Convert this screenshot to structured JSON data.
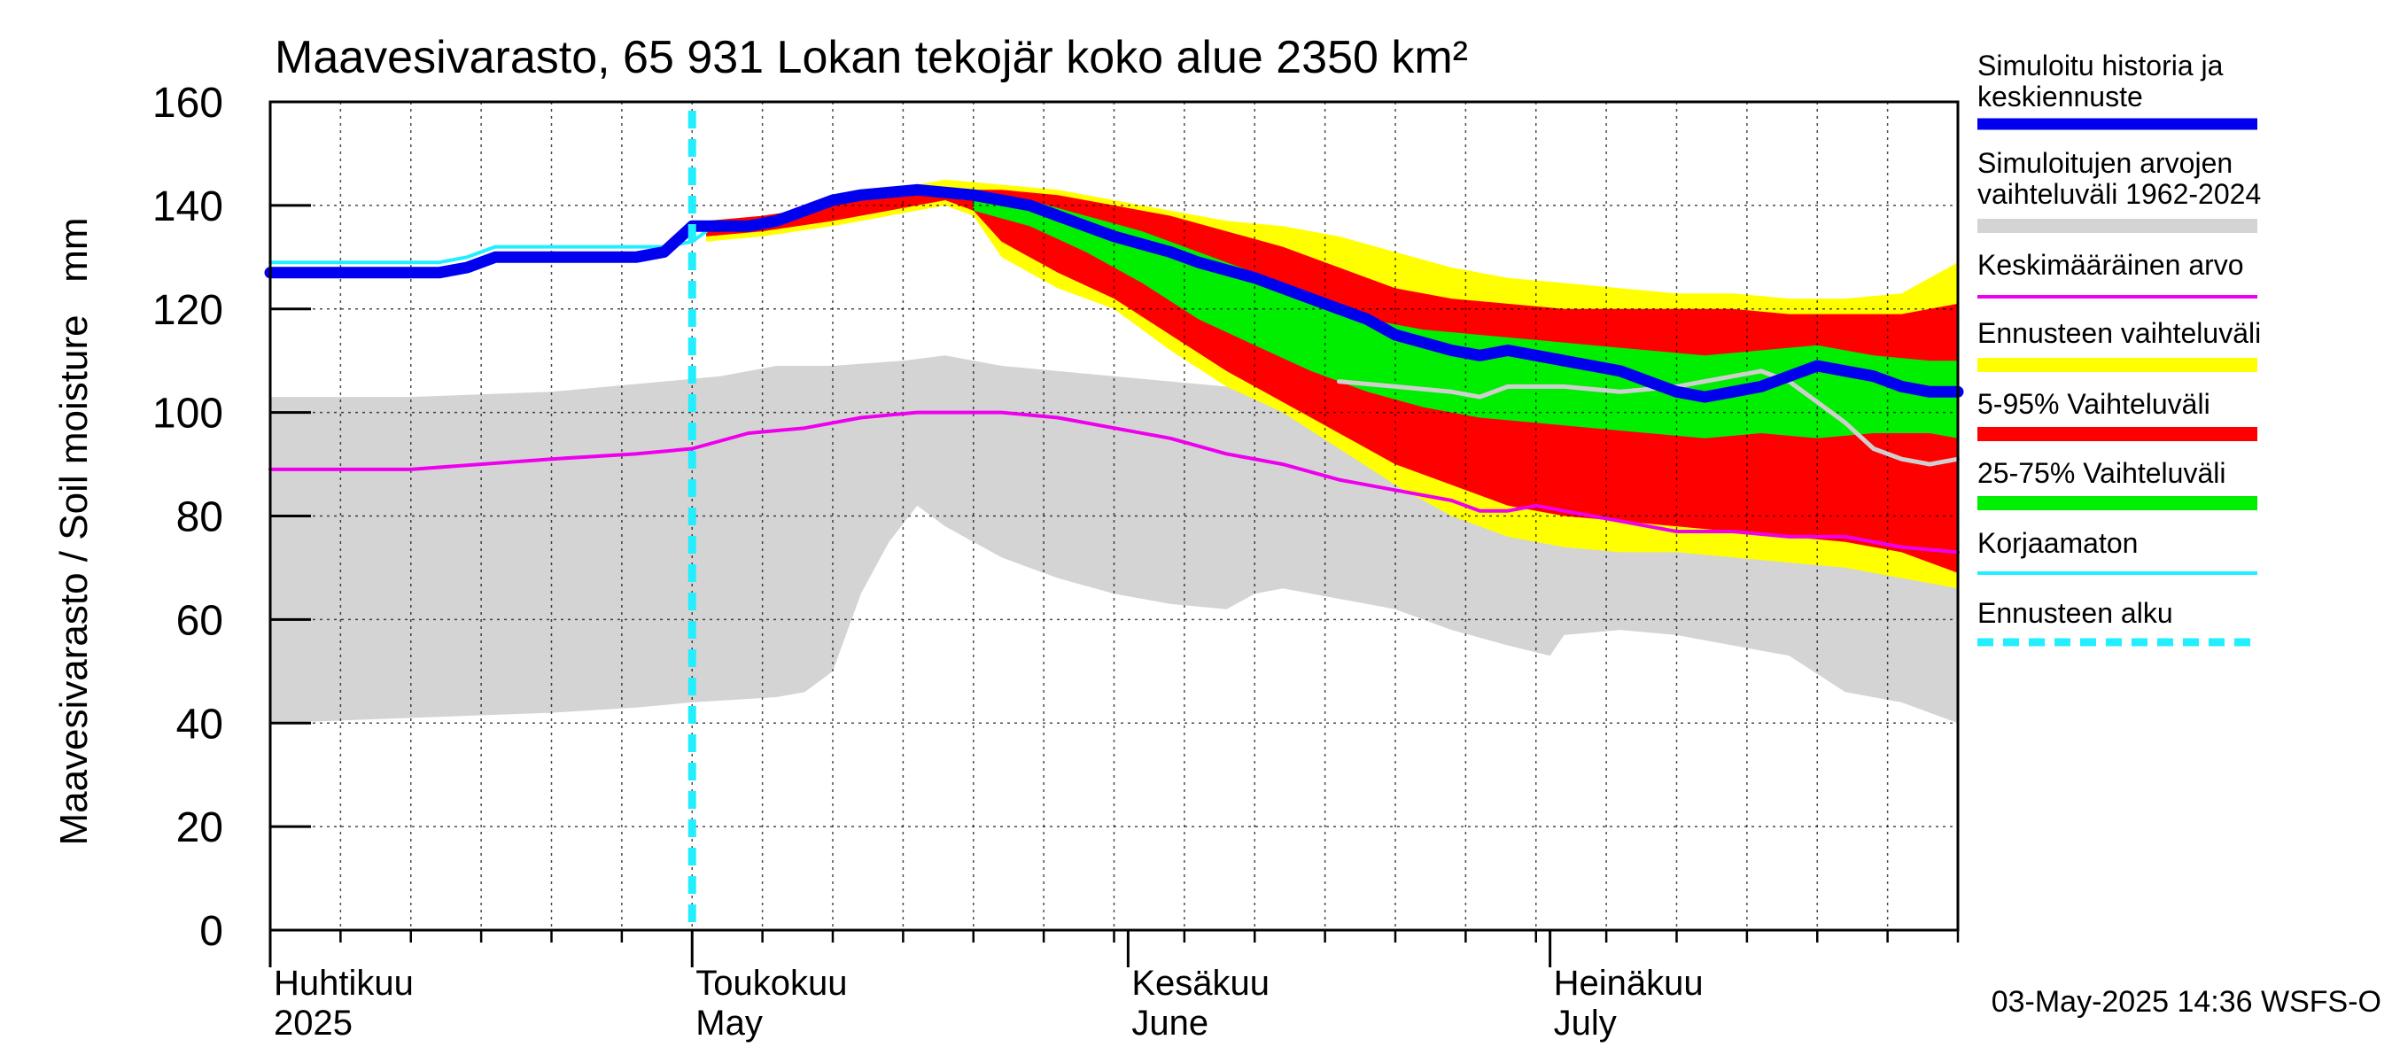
{
  "chart_data": {
    "type": "area",
    "title": "Maavesivarasto, 65 931 Lokan tekojär koko alue 2350 km²",
    "ylabel": "Maavesivarasto / Soil moisture   mm",
    "ylim": [
      0,
      160
    ],
    "yticks": [
      0,
      20,
      40,
      60,
      80,
      100,
      120,
      140,
      160
    ],
    "x_range_days": [
      0,
      120
    ],
    "x_start_date": "2025-04-01",
    "month_labels": [
      {
        "day": 0,
        "fi": "Huhtikuu",
        "en": "2025"
      },
      {
        "day": 30,
        "fi": "Toukokuu",
        "en": "May"
      },
      {
        "day": 61,
        "fi": "Kesäkuu",
        "en": "June"
      },
      {
        "day": 91,
        "fi": "Heinäkuu",
        "en": "July"
      }
    ],
    "forecast_start_day": 30,
    "timestamp": "03-May-2025 14:36 WSFS-O",
    "colors": {
      "hist_range": "#d4d4d4",
      "forecast_range": "#ffff00",
      "p5_95": "#ff0000",
      "p25_75": "#00ee00",
      "median": "#0000ee",
      "mean": "#ee00ee",
      "uncorrected": "#22eeff",
      "sim_history_grey": "#cfcfcf"
    },
    "legend": [
      {
        "label": "Simuloitu historia ja",
        "label2": "keskiennuste",
        "key": "median",
        "style": "thick"
      },
      {
        "label": "Simuloitujen arvojen",
        "label2": "vaihteluväli 1962-2024",
        "key": "hist_range",
        "style": "band"
      },
      {
        "label": "Keskimääräinen arvo",
        "key": "mean",
        "style": "thin"
      },
      {
        "label": "Ennusteen vaihteluväli",
        "key": "forecast_range",
        "style": "band"
      },
      {
        "label": "5-95% Vaihteluväli",
        "key": "p5_95",
        "style": "band"
      },
      {
        "label": "25-75% Vaihteluväli",
        "key": "p25_75",
        "style": "band"
      },
      {
        "label": "Korjaamaton",
        "key": "uncorrected",
        "style": "thin"
      },
      {
        "label": "Ennusteen alku",
        "key": "uncorrected",
        "style": "dashed"
      }
    ],
    "series": {
      "hist_max": [
        [
          0,
          103
        ],
        [
          10,
          103
        ],
        [
          20,
          104
        ],
        [
          28,
          106
        ],
        [
          32,
          107
        ],
        [
          36,
          109
        ],
        [
          40,
          109
        ],
        [
          45,
          110
        ],
        [
          48,
          111
        ],
        [
          52,
          109
        ],
        [
          56,
          108
        ],
        [
          60,
          107
        ],
        [
          64,
          106
        ],
        [
          68,
          105
        ],
        [
          72,
          104
        ],
        [
          76,
          104
        ],
        [
          80,
          104
        ],
        [
          84,
          104
        ],
        [
          88,
          103
        ],
        [
          92,
          102
        ],
        [
          96,
          101
        ],
        [
          100,
          101
        ],
        [
          104,
          100
        ],
        [
          108,
          98
        ],
        [
          112,
          95
        ],
        [
          116,
          92
        ],
        [
          120,
          90
        ]
      ],
      "hist_min": [
        [
          0,
          40
        ],
        [
          10,
          41
        ],
        [
          20,
          42
        ],
        [
          26,
          43
        ],
        [
          30,
          44
        ],
        [
          36,
          45
        ],
        [
          38,
          46
        ],
        [
          40,
          50
        ],
        [
          42,
          65
        ],
        [
          44,
          75
        ],
        [
          46,
          82
        ],
        [
          48,
          78
        ],
        [
          52,
          72
        ],
        [
          56,
          68
        ],
        [
          60,
          65
        ],
        [
          64,
          63
        ],
        [
          68,
          62
        ],
        [
          70,
          65
        ],
        [
          72,
          66
        ],
        [
          76,
          64
        ],
        [
          80,
          62
        ],
        [
          84,
          58
        ],
        [
          88,
          55
        ],
        [
          91,
          53
        ],
        [
          92,
          57
        ],
        [
          96,
          58
        ],
        [
          100,
          57
        ],
        [
          104,
          55
        ],
        [
          108,
          53
        ],
        [
          112,
          46
        ],
        [
          116,
          44
        ],
        [
          120,
          40
        ]
      ],
      "fc_max": [
        [
          31,
          137
        ],
        [
          35,
          138
        ],
        [
          40,
          140
        ],
        [
          44,
          143
        ],
        [
          48,
          145
        ],
        [
          52,
          144
        ],
        [
          56,
          143
        ],
        [
          60,
          141
        ],
        [
          64,
          139
        ],
        [
          68,
          137
        ],
        [
          72,
          136
        ],
        [
          76,
          134
        ],
        [
          80,
          131
        ],
        [
          84,
          128
        ],
        [
          88,
          126
        ],
        [
          92,
          125
        ],
        [
          96,
          124
        ],
        [
          100,
          123
        ],
        [
          104,
          123
        ],
        [
          108,
          122
        ],
        [
          112,
          122
        ],
        [
          116,
          123
        ],
        [
          120,
          129
        ]
      ],
      "fc_min": [
        [
          31,
          133
        ],
        [
          35,
          134
        ],
        [
          40,
          136
        ],
        [
          44,
          138
        ],
        [
          48,
          140
        ],
        [
          50,
          138
        ],
        [
          52,
          130
        ],
        [
          56,
          124
        ],
        [
          60,
          120
        ],
        [
          64,
          112
        ],
        [
          68,
          105
        ],
        [
          72,
          100
        ],
        [
          76,
          93
        ],
        [
          80,
          86
        ],
        [
          84,
          80
        ],
        [
          88,
          76
        ],
        [
          92,
          74
        ],
        [
          96,
          73
        ],
        [
          100,
          73
        ],
        [
          104,
          72
        ],
        [
          108,
          71
        ],
        [
          112,
          70
        ],
        [
          116,
          68
        ],
        [
          120,
          66
        ]
      ],
      "p95": [
        [
          31,
          137
        ],
        [
          35,
          138
        ],
        [
          40,
          140
        ],
        [
          44,
          142
        ],
        [
          48,
          143
        ],
        [
          52,
          143
        ],
        [
          56,
          142
        ],
        [
          60,
          140
        ],
        [
          64,
          138
        ],
        [
          68,
          135
        ],
        [
          72,
          132
        ],
        [
          76,
          128
        ],
        [
          80,
          124
        ],
        [
          84,
          122
        ],
        [
          88,
          121
        ],
        [
          92,
          120
        ],
        [
          96,
          120
        ],
        [
          100,
          120
        ],
        [
          104,
          120
        ],
        [
          108,
          119
        ],
        [
          112,
          119
        ],
        [
          116,
          119
        ],
        [
          120,
          121
        ]
      ],
      "p5": [
        [
          31,
          134
        ],
        [
          35,
          135
        ],
        [
          40,
          137
        ],
        [
          44,
          139
        ],
        [
          48,
          141
        ],
        [
          50,
          139
        ],
        [
          52,
          133
        ],
        [
          56,
          127
        ],
        [
          60,
          122
        ],
        [
          64,
          115
        ],
        [
          68,
          108
        ],
        [
          72,
          102
        ],
        [
          76,
          96
        ],
        [
          80,
          90
        ],
        [
          84,
          86
        ],
        [
          88,
          82
        ],
        [
          92,
          80
        ],
        [
          96,
          79
        ],
        [
          100,
          78
        ],
        [
          104,
          77
        ],
        [
          108,
          76
        ],
        [
          112,
          75
        ],
        [
          116,
          73
        ],
        [
          120,
          69
        ]
      ],
      "p75": [
        [
          50,
          142
        ],
        [
          54,
          141
        ],
        [
          58,
          138
        ],
        [
          62,
          135
        ],
        [
          66,
          131
        ],
        [
          70,
          127
        ],
        [
          74,
          123
        ],
        [
          78,
          118
        ],
        [
          82,
          116
        ],
        [
          86,
          115
        ],
        [
          90,
          114
        ],
        [
          94,
          113
        ],
        [
          98,
          112
        ],
        [
          102,
          111
        ],
        [
          106,
          112
        ],
        [
          110,
          113
        ],
        [
          114,
          111
        ],
        [
          118,
          110
        ],
        [
          120,
          110
        ]
      ],
      "p25": [
        [
          50,
          139
        ],
        [
          54,
          136
        ],
        [
          58,
          131
        ],
        [
          62,
          125
        ],
        [
          66,
          118
        ],
        [
          70,
          113
        ],
        [
          74,
          108
        ],
        [
          78,
          104
        ],
        [
          82,
          101
        ],
        [
          86,
          99
        ],
        [
          90,
          98
        ],
        [
          94,
          97
        ],
        [
          98,
          96
        ],
        [
          102,
          95
        ],
        [
          106,
          96
        ],
        [
          110,
          95
        ],
        [
          114,
          96
        ],
        [
          118,
          96
        ],
        [
          120,
          95
        ]
      ],
      "median": [
        [
          0,
          127
        ],
        [
          12,
          127
        ],
        [
          14,
          128
        ],
        [
          16,
          130
        ],
        [
          26,
          130
        ],
        [
          28,
          131
        ],
        [
          30,
          136
        ],
        [
          34,
          136
        ],
        [
          36,
          137
        ],
        [
          38,
          139
        ],
        [
          40,
          141
        ],
        [
          42,
          142
        ],
        [
          46,
          143
        ],
        [
          50,
          142
        ],
        [
          54,
          140
        ],
        [
          56,
          138
        ],
        [
          58,
          136
        ],
        [
          60,
          134
        ],
        [
          64,
          131
        ],
        [
          66,
          129
        ],
        [
          70,
          126
        ],
        [
          74,
          122
        ],
        [
          76,
          120
        ],
        [
          78,
          118
        ],
        [
          80,
          115
        ],
        [
          84,
          112
        ],
        [
          86,
          111
        ],
        [
          88,
          112
        ],
        [
          90,
          111
        ],
        [
          92,
          110
        ],
        [
          94,
          109
        ],
        [
          96,
          108
        ],
        [
          98,
          106
        ],
        [
          100,
          104
        ],
        [
          102,
          103
        ],
        [
          104,
          104
        ],
        [
          106,
          105
        ],
        [
          108,
          107
        ],
        [
          110,
          109
        ],
        [
          112,
          108
        ],
        [
          114,
          107
        ],
        [
          116,
          105
        ],
        [
          118,
          104
        ],
        [
          120,
          104
        ]
      ],
      "mean": [
        [
          0,
          89
        ],
        [
          10,
          89
        ],
        [
          20,
          91
        ],
        [
          26,
          92
        ],
        [
          30,
          93
        ],
        [
          34,
          96
        ],
        [
          38,
          97
        ],
        [
          42,
          99
        ],
        [
          46,
          100
        ],
        [
          50,
          100
        ],
        [
          52,
          100
        ],
        [
          56,
          99
        ],
        [
          60,
          97
        ],
        [
          64,
          95
        ],
        [
          68,
          92
        ],
        [
          72,
          90
        ],
        [
          76,
          87
        ],
        [
          80,
          85
        ],
        [
          84,
          83
        ],
        [
          86,
          81
        ],
        [
          88,
          81
        ],
        [
          90,
          82
        ],
        [
          92,
          81
        ],
        [
          94,
          80
        ],
        [
          96,
          79
        ],
        [
          98,
          78
        ],
        [
          100,
          77
        ],
        [
          104,
          77
        ],
        [
          108,
          76
        ],
        [
          112,
          76
        ],
        [
          116,
          74
        ],
        [
          120,
          73
        ]
      ],
      "uncorrected": [
        [
          0,
          129
        ],
        [
          12,
          129
        ],
        [
          14,
          130
        ],
        [
          16,
          132
        ],
        [
          28,
          132
        ],
        [
          30,
          133
        ],
        [
          31,
          135
        ]
      ],
      "sim_history": [
        [
          76,
          106
        ],
        [
          80,
          105
        ],
        [
          84,
          104
        ],
        [
          86,
          103
        ],
        [
          88,
          105
        ],
        [
          92,
          105
        ],
        [
          96,
          104
        ],
        [
          100,
          105
        ],
        [
          104,
          107
        ],
        [
          106,
          108
        ],
        [
          108,
          106
        ],
        [
          110,
          102
        ],
        [
          112,
          98
        ],
        [
          114,
          93
        ],
        [
          116,
          91
        ],
        [
          118,
          90
        ],
        [
          120,
          91
        ]
      ]
    }
  }
}
